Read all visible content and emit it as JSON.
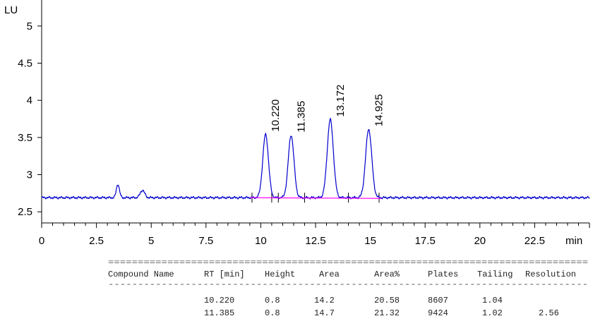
{
  "chart_data": {
    "type": "line",
    "ylabel": "LU",
    "xlabel": "min",
    "xlim": [
      0,
      25
    ],
    "ylim": [
      2.35,
      5.35
    ],
    "x_ticks": [
      "0",
      "2.5",
      "5",
      "7.5",
      "10",
      "12.5",
      "15",
      "17.5",
      "20",
      "22.5"
    ],
    "y_ticks": [
      "2.5",
      "3",
      "3.5",
      "4",
      "4.5",
      "5"
    ],
    "baseline": 2.69,
    "series": [
      {
        "color": "#0000cc",
        "peaks": [
          {
            "label": "10.220",
            "rt": 10.22,
            "height": 3.54,
            "width": 0.13
          },
          {
            "label": "11.385",
            "rt": 11.385,
            "height": 3.53,
            "width": 0.13
          },
          {
            "label": "13.172",
            "rt": 13.172,
            "height": 3.74,
            "width": 0.14
          },
          {
            "label": "14.925",
            "rt": 14.925,
            "height": 3.61,
            "width": 0.14
          }
        ],
        "minor_peaks": [
          {
            "rt": 3.48,
            "height": 2.87,
            "width": 0.07
          },
          {
            "rt": 4.6,
            "height": 2.79,
            "width": 0.1
          }
        ]
      },
      {
        "color": "#ff00ff",
        "segment": {
          "x": [
            9.5,
            15.5
          ],
          "y": [
            2.69,
            2.68
          ]
        }
      }
    ],
    "integration_marks": [
      9.6,
      10.5,
      10.8,
      12.0,
      14.0,
      15.4
    ]
  },
  "results_table": {
    "separator": "=================================================================================",
    "separator2": "---------------------------------------------------------------------------------",
    "headers": [
      "Compound Name",
      "RT [min]",
      "Height",
      "Area",
      "Area%",
      "Plates",
      "Tailing",
      "Resolution"
    ],
    "rows": [
      [
        "",
        "10.220",
        "0.8",
        "14.2",
        "20.58",
        "8607",
        "1.04",
        ""
      ],
      [
        "",
        "11.385",
        "0.8",
        "14.7",
        "21.32",
        "9424",
        "1.02",
        "2.56"
      ]
    ]
  }
}
